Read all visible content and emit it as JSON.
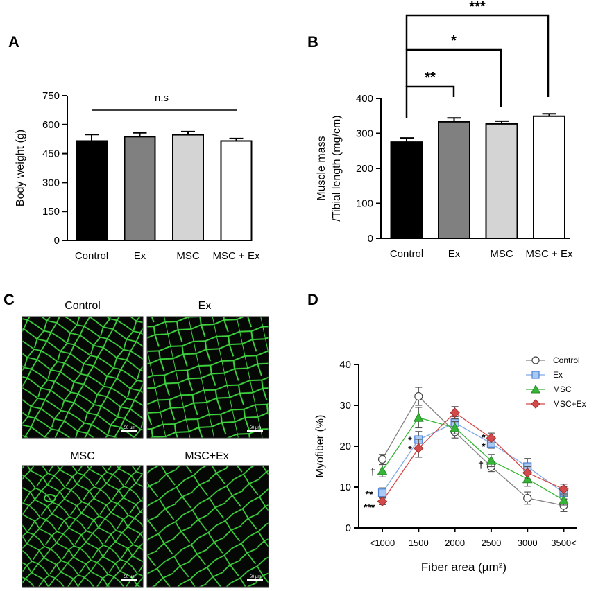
{
  "figure": {
    "panel_letters": [
      "A",
      "B",
      "C",
      "D"
    ],
    "significance": {
      "a_bracket": "n.s",
      "b_brackets": [
        "**",
        "*",
        "***"
      ],
      "d_markers": [
        "†",
        "**",
        "***",
        "*",
        "*",
        "*",
        "*",
        "†"
      ]
    },
    "micrographs": [
      {
        "label": "Control",
        "scale_bar": "50 µm"
      },
      {
        "label": "Ex",
        "scale_bar": "50 µm"
      },
      {
        "label": "MSC",
        "scale_bar": "50 µm"
      },
      {
        "label": "MSC+Ex",
        "scale_bar": "50 µm"
      }
    ],
    "colors": {
      "control_bar": "#000000",
      "ex_bar": "#808080",
      "msc_bar": "#d4d4d4",
      "mscex_bar": "#ffffff",
      "control_line": "#808080",
      "ex_line": "#7ea8e6",
      "msc_line": "#36b536",
      "mscex_line": "#d24a4a",
      "membrane_green": "#3ed23e"
    }
  },
  "chart_data": [
    {
      "panel": "A",
      "type": "bar",
      "categories": [
        "Control",
        "Ex",
        "MSC",
        "MSC + Ex"
      ],
      "values": [
        515,
        537,
        547,
        515
      ],
      "errors": [
        33,
        20,
        17,
        13
      ],
      "ylabel": "Body weight (g)",
      "xlabel": "",
      "ylim": [
        0,
        750
      ],
      "yticks": [
        "0",
        "150",
        "300",
        "450",
        "600",
        "750"
      ],
      "annotations": [
        "n.s"
      ]
    },
    {
      "panel": "B",
      "type": "bar",
      "categories": [
        "Control",
        "Ex",
        "MSC",
        "MSC + Ex"
      ],
      "values": [
        275,
        333,
        327,
        349
      ],
      "errors": [
        12,
        11,
        8,
        7
      ],
      "ylabel": [
        "Muscle mass",
        "/Tibial length (mg/cm)"
      ],
      "xlabel": "",
      "ylim": [
        0,
        400
      ],
      "yticks": [
        "0",
        "100",
        "200",
        "300",
        "400"
      ],
      "annotations": [
        "**",
        "*",
        "***"
      ]
    },
    {
      "panel": "D",
      "type": "line",
      "categories": [
        "<1000",
        "1500",
        "2000",
        "2500",
        "3000",
        "3500<"
      ],
      "xlabel": "Fiber area (µm²)",
      "ylabel": "Myofiber (%)",
      "ylim": [
        0,
        40
      ],
      "yticks": [
        "0",
        "10",
        "20",
        "30",
        "40"
      ],
      "legend_position": "top-right",
      "series": [
        {
          "name": "Control",
          "values": [
            16.8,
            32.2,
            23.5,
            15.0,
            7.3,
            5.5
          ],
          "errors": [
            1.2,
            2.2,
            1.5,
            1.2,
            1.5,
            1.5
          ]
        },
        {
          "name": "Ex",
          "values": [
            8.6,
            21.6,
            25.7,
            20.7,
            15.0,
            8.6
          ],
          "errors": [
            1.2,
            2.0,
            1.5,
            1.2,
            2.0,
            1.5
          ]
        },
        {
          "name": "MSC",
          "values": [
            14.0,
            27.0,
            24.5,
            16.5,
            12.0,
            6.8
          ],
          "errors": [
            1.5,
            2.5,
            1.5,
            1.5,
            1.8,
            1.2
          ]
        },
        {
          "name": "MSC+Ex",
          "values": [
            6.5,
            19.5,
            28.2,
            22.0,
            13.5,
            9.5
          ],
          "errors": [
            0.8,
            2.2,
            1.5,
            1.2,
            1.5,
            1.2
          ]
        }
      ]
    }
  ]
}
